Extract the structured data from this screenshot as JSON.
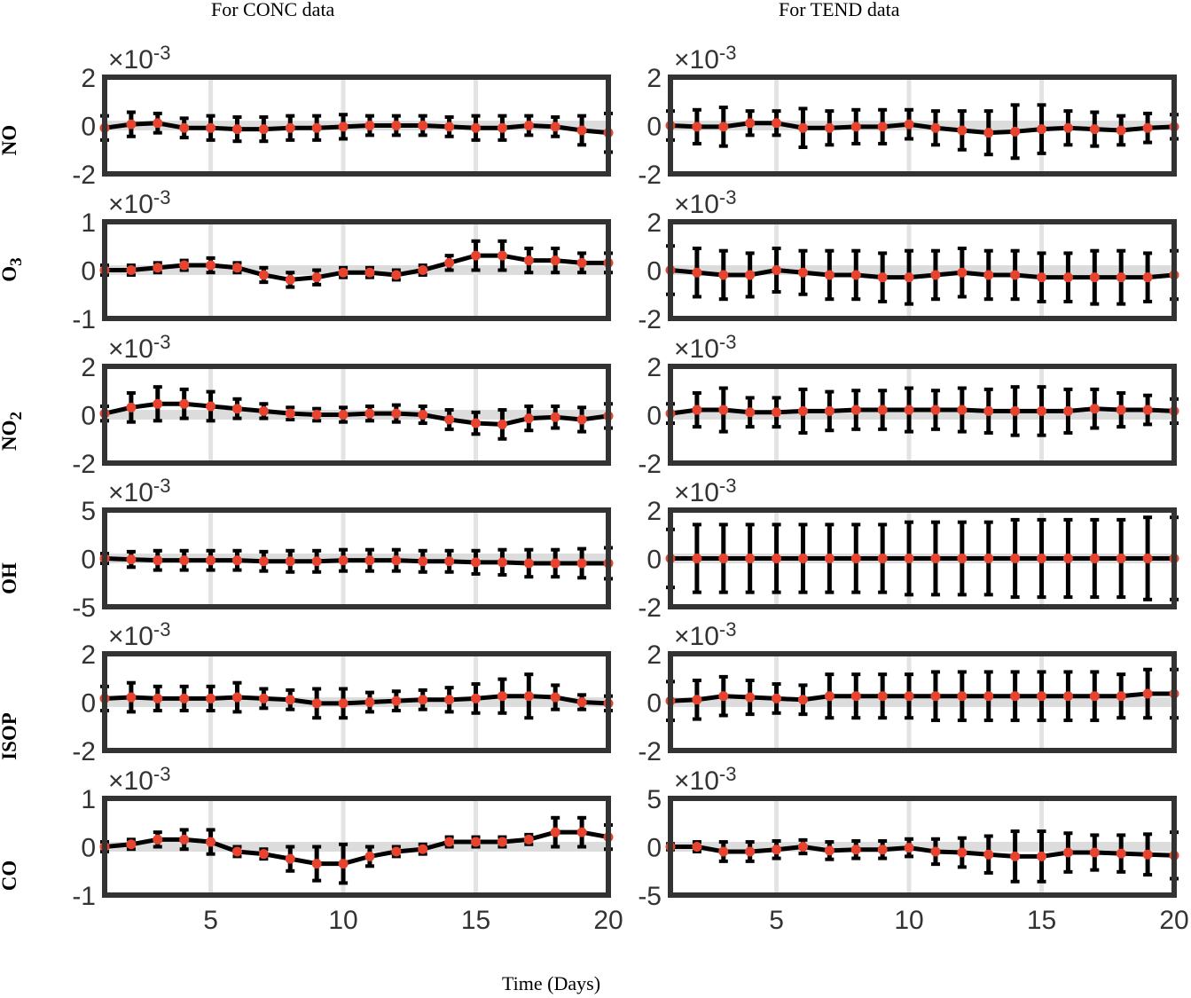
{
  "column_titles": [
    "For CONC data",
    "For TEND data"
  ],
  "x_title": "Time (Days)",
  "row_labels": [
    {
      "text": "NO",
      "sub": ""
    },
    {
      "text": "O",
      "sub": "3"
    },
    {
      "text": "NO",
      "sub": "2"
    },
    {
      "text": "OH",
      "sub": ""
    },
    {
      "text": "ISOP",
      "sub": ""
    },
    {
      "text": "CO",
      "sub": ""
    }
  ],
  "exponent_label": "×10",
  "exponent_power": "-3",
  "colors": {
    "mean": "#000000",
    "marker": "#e8432e",
    "grid": "#e3e3e3",
    "frame": "#333333",
    "band": "#dcdcdc"
  },
  "chart_data": [
    {
      "type": "line",
      "column": "For CONC data",
      "row": "NO",
      "x": [
        1,
        2,
        3,
        4,
        5,
        6,
        7,
        8,
        9,
        10,
        11,
        12,
        13,
        14,
        15,
        16,
        17,
        18,
        19,
        20
      ],
      "values": [
        -0.1,
        0.05,
        0.1,
        -0.1,
        -0.1,
        -0.15,
        -0.15,
        -0.1,
        -0.1,
        -0.05,
        0.0,
        0.0,
        0.0,
        -0.05,
        -0.1,
        -0.1,
        0.0,
        -0.05,
        -0.2,
        -0.3
      ],
      "error": [
        0.5,
        0.5,
        0.4,
        0.4,
        0.5,
        0.5,
        0.5,
        0.5,
        0.5,
        0.5,
        0.4,
        0.4,
        0.4,
        0.4,
        0.5,
        0.5,
        0.4,
        0.4,
        0.6,
        0.8
      ],
      "xlim": [
        1,
        20
      ],
      "ylim": [
        -2,
        2
      ],
      "yticks": [
        -2,
        0,
        2
      ],
      "multiplier": "×10^-3",
      "grid_x": [
        5,
        10,
        15
      ]
    },
    {
      "type": "line",
      "column": "For TEND data",
      "row": "NO",
      "x": [
        1,
        2,
        3,
        4,
        5,
        6,
        7,
        8,
        9,
        10,
        11,
        12,
        13,
        14,
        15,
        16,
        17,
        18,
        19,
        20
      ],
      "values": [
        0.0,
        -0.05,
        -0.05,
        0.1,
        0.1,
        -0.1,
        -0.1,
        -0.05,
        -0.05,
        0.05,
        -0.1,
        -0.2,
        -0.3,
        -0.25,
        -0.15,
        -0.1,
        -0.15,
        -0.2,
        -0.1,
        -0.05
      ],
      "error": [
        0.6,
        0.7,
        0.8,
        0.5,
        0.5,
        0.8,
        0.7,
        0.7,
        0.7,
        0.6,
        0.7,
        0.8,
        0.9,
        1.1,
        1.0,
        0.7,
        0.7,
        0.6,
        0.6,
        0.5
      ],
      "xlim": [
        1,
        20
      ],
      "ylim": [
        -2,
        2
      ],
      "yticks": [
        -2,
        0,
        2
      ],
      "multiplier": "×10^-3",
      "grid_x": [
        5,
        10,
        15
      ]
    },
    {
      "type": "line",
      "column": "For CONC data",
      "row": "O3",
      "x": [
        1,
        2,
        3,
        4,
        5,
        6,
        7,
        8,
        9,
        10,
        11,
        12,
        13,
        14,
        15,
        16,
        17,
        18,
        19,
        20
      ],
      "values": [
        0.0,
        0.0,
        0.05,
        0.1,
        0.1,
        0.05,
        -0.1,
        -0.2,
        -0.15,
        -0.05,
        -0.05,
        -0.1,
        0.0,
        0.15,
        0.3,
        0.3,
        0.2,
        0.2,
        0.15,
        0.15
      ],
      "error": [
        0.1,
        0.1,
        0.1,
        0.1,
        0.15,
        0.1,
        0.15,
        0.15,
        0.15,
        0.1,
        0.1,
        0.1,
        0.1,
        0.15,
        0.3,
        0.3,
        0.25,
        0.25,
        0.2,
        0.2
      ],
      "xlim": [
        1,
        20
      ],
      "ylim": [
        -1,
        1
      ],
      "yticks": [
        -1,
        0,
        1
      ],
      "multiplier": "×10^-3",
      "grid_x": [
        5,
        10,
        15
      ]
    },
    {
      "type": "line",
      "column": "For TEND data",
      "row": "O3",
      "x": [
        1,
        2,
        3,
        4,
        5,
        6,
        7,
        8,
        9,
        10,
        11,
        12,
        13,
        14,
        15,
        16,
        17,
        18,
        19,
        20
      ],
      "values": [
        0.0,
        -0.1,
        -0.2,
        -0.2,
        0.0,
        -0.1,
        -0.2,
        -0.2,
        -0.3,
        -0.3,
        -0.2,
        -0.1,
        -0.2,
        -0.2,
        -0.3,
        -0.3,
        -0.3,
        -0.3,
        -0.3,
        -0.2
      ],
      "error": [
        1.0,
        1.0,
        1.0,
        0.9,
        0.9,
        0.9,
        1.0,
        1.0,
        1.0,
        1.1,
        1.0,
        1.0,
        1.0,
        1.0,
        1.0,
        1.0,
        1.1,
        1.1,
        1.0,
        1.0
      ],
      "xlim": [
        1,
        20
      ],
      "ylim": [
        -2,
        2
      ],
      "yticks": [
        -2,
        0,
        2
      ],
      "multiplier": "×10^-3",
      "grid_x": [
        5,
        10,
        15
      ]
    },
    {
      "type": "line",
      "column": "For CONC data",
      "row": "NO2",
      "x": [
        1,
        2,
        3,
        4,
        5,
        6,
        7,
        8,
        9,
        10,
        11,
        12,
        13,
        14,
        15,
        16,
        17,
        18,
        19,
        20
      ],
      "values": [
        0.05,
        0.3,
        0.45,
        0.45,
        0.35,
        0.25,
        0.15,
        0.05,
        0.0,
        0.0,
        0.05,
        0.05,
        0.0,
        -0.2,
        -0.35,
        -0.4,
        -0.15,
        -0.1,
        -0.2,
        -0.05
      ],
      "error": [
        0.3,
        0.6,
        0.7,
        0.6,
        0.6,
        0.4,
        0.3,
        0.25,
        0.25,
        0.3,
        0.3,
        0.35,
        0.35,
        0.4,
        0.45,
        0.6,
        0.5,
        0.45,
        0.5,
        0.5
      ],
      "xlim": [
        1,
        20
      ],
      "ylim": [
        -2,
        2
      ],
      "yticks": [
        -2,
        0,
        2
      ],
      "multiplier": "×10^-3",
      "grid_x": [
        5,
        10,
        15
      ]
    },
    {
      "type": "line",
      "column": "For TEND data",
      "row": "NO2",
      "x": [
        1,
        2,
        3,
        4,
        5,
        6,
        7,
        8,
        9,
        10,
        11,
        12,
        13,
        14,
        15,
        16,
        17,
        18,
        19,
        20
      ],
      "values": [
        0.05,
        0.2,
        0.2,
        0.1,
        0.1,
        0.15,
        0.15,
        0.2,
        0.2,
        0.2,
        0.2,
        0.2,
        0.15,
        0.15,
        0.15,
        0.15,
        0.25,
        0.2,
        0.2,
        0.15
      ],
      "error": [
        0.4,
        0.7,
        0.9,
        0.6,
        0.6,
        0.9,
        0.8,
        0.8,
        0.8,
        0.9,
        0.8,
        0.9,
        0.9,
        1.0,
        1.0,
        0.9,
        0.8,
        0.7,
        0.6,
        0.5
      ],
      "xlim": [
        1,
        20
      ],
      "ylim": [
        -2,
        2
      ],
      "yticks": [
        -2,
        0,
        2
      ],
      "multiplier": "×10^-3",
      "grid_x": [
        5,
        10,
        15
      ]
    },
    {
      "type": "line",
      "column": "For CONC data",
      "row": "OH",
      "x": [
        1,
        2,
        3,
        4,
        5,
        6,
        7,
        8,
        9,
        10,
        11,
        12,
        13,
        14,
        15,
        16,
        17,
        18,
        19,
        20
      ],
      "values": [
        0.0,
        -0.1,
        -0.2,
        -0.2,
        -0.2,
        -0.2,
        -0.3,
        -0.3,
        -0.3,
        -0.2,
        -0.2,
        -0.2,
        -0.3,
        -0.3,
        -0.4,
        -0.4,
        -0.5,
        -0.5,
        -0.5,
        -0.5
      ],
      "error": [
        0.5,
        0.8,
        1.0,
        1.0,
        1.0,
        1.0,
        1.0,
        1.1,
        1.1,
        1.1,
        1.1,
        1.1,
        1.1,
        1.1,
        1.2,
        1.3,
        1.4,
        1.4,
        1.5,
        1.6
      ],
      "xlim": [
        1,
        20
      ],
      "ylim": [
        -5,
        5
      ],
      "yticks": [
        -5,
        0,
        5
      ],
      "multiplier": "×10^-3",
      "grid_x": [
        5,
        10,
        15
      ]
    },
    {
      "type": "line",
      "column": "For TEND data",
      "row": "OH",
      "x": [
        1,
        2,
        3,
        4,
        5,
        6,
        7,
        8,
        9,
        10,
        11,
        12,
        13,
        14,
        15,
        16,
        17,
        18,
        19,
        20
      ],
      "values": [
        0,
        0,
        0,
        0,
        0,
        0,
        0,
        0,
        0,
        0,
        0,
        0,
        0,
        0,
        0,
        0,
        0,
        0,
        0,
        0
      ],
      "error": [
        1.2,
        1.4,
        1.4,
        1.4,
        1.4,
        1.4,
        1.4,
        1.4,
        1.4,
        1.5,
        1.5,
        1.5,
        1.5,
        1.6,
        1.6,
        1.6,
        1.6,
        1.6,
        1.7,
        1.7
      ],
      "xlim": [
        1,
        20
      ],
      "ylim": [
        -2,
        2
      ],
      "yticks": [
        -2,
        0,
        2
      ],
      "multiplier": "×10^-3",
      "grid_x": [
        5,
        10,
        15
      ]
    },
    {
      "type": "line",
      "column": "For CONC data",
      "row": "ISOP",
      "x": [
        1,
        2,
        3,
        4,
        5,
        6,
        7,
        8,
        9,
        10,
        11,
        12,
        13,
        14,
        15,
        16,
        17,
        18,
        19,
        20
      ],
      "values": [
        0.15,
        0.2,
        0.15,
        0.15,
        0.15,
        0.2,
        0.15,
        0.1,
        -0.05,
        -0.05,
        0.0,
        0.05,
        0.1,
        0.1,
        0.15,
        0.25,
        0.25,
        0.2,
        0.0,
        -0.05
      ],
      "error": [
        0.5,
        0.6,
        0.5,
        0.5,
        0.5,
        0.6,
        0.4,
        0.4,
        0.6,
        0.6,
        0.4,
        0.4,
        0.4,
        0.5,
        0.6,
        0.7,
        0.9,
        0.5,
        0.3,
        0.3
      ],
      "xlim": [
        1,
        20
      ],
      "ylim": [
        -2,
        2
      ],
      "yticks": [
        -2,
        0,
        2
      ],
      "multiplier": "×10^-3",
      "grid_x": [
        5,
        10,
        15
      ]
    },
    {
      "type": "line",
      "column": "For TEND data",
      "row": "ISOP",
      "x": [
        1,
        2,
        3,
        4,
        5,
        6,
        7,
        8,
        9,
        10,
        11,
        12,
        13,
        14,
        15,
        16,
        17,
        18,
        19,
        20
      ],
      "values": [
        0.05,
        0.1,
        0.25,
        0.2,
        0.15,
        0.1,
        0.25,
        0.25,
        0.25,
        0.25,
        0.25,
        0.25,
        0.25,
        0.25,
        0.25,
        0.25,
        0.25,
        0.25,
        0.35,
        0.35
      ],
      "error": [
        0.8,
        0.8,
        0.8,
        0.7,
        0.6,
        0.6,
        0.9,
        0.9,
        0.9,
        0.9,
        1.0,
        1.0,
        1.0,
        1.0,
        1.0,
        1.0,
        1.0,
        0.9,
        1.0,
        1.0
      ],
      "xlim": [
        1,
        20
      ],
      "ylim": [
        -2,
        2
      ],
      "yticks": [
        -2,
        0,
        2
      ],
      "multiplier": "×10^-3",
      "grid_x": [
        5,
        10,
        15
      ]
    },
    {
      "type": "line",
      "column": "For CONC data",
      "row": "CO",
      "x": [
        1,
        2,
        3,
        4,
        5,
        6,
        7,
        8,
        9,
        10,
        11,
        12,
        13,
        14,
        15,
        16,
        17,
        18,
        19,
        20
      ],
      "values": [
        0.0,
        0.05,
        0.15,
        0.15,
        0.1,
        -0.1,
        -0.15,
        -0.25,
        -0.35,
        -0.35,
        -0.2,
        -0.1,
        -0.05,
        0.1,
        0.1,
        0.1,
        0.15,
        0.3,
        0.3,
        0.2
      ],
      "error": [
        0.1,
        0.1,
        0.15,
        0.2,
        0.25,
        0.1,
        0.1,
        0.25,
        0.35,
        0.4,
        0.2,
        0.1,
        0.1,
        0.1,
        0.1,
        0.1,
        0.1,
        0.3,
        0.3,
        0.25
      ],
      "xlim": [
        1,
        20
      ],
      "ylim": [
        -1,
        1
      ],
      "yticks": [
        -1,
        0,
        1
      ],
      "multiplier": "×10^-3",
      "grid_x": [
        5,
        10,
        15
      ]
    },
    {
      "type": "line",
      "column": "For TEND data",
      "row": "CO",
      "x": [
        1,
        2,
        3,
        4,
        5,
        6,
        7,
        8,
        9,
        10,
        11,
        12,
        13,
        14,
        15,
        16,
        17,
        18,
        19,
        20
      ],
      "values": [
        0.0,
        0.0,
        -0.5,
        -0.5,
        -0.3,
        0.0,
        -0.4,
        -0.3,
        -0.3,
        -0.1,
        -0.5,
        -0.6,
        -0.8,
        -1.0,
        -1.0,
        -0.6,
        -0.6,
        -0.7,
        -0.8,
        -0.9
      ],
      "error": [
        0.3,
        0.5,
        1.0,
        1.0,
        0.9,
        0.7,
        0.9,
        0.9,
        0.9,
        0.9,
        1.3,
        1.5,
        1.9,
        2.6,
        2.6,
        2.0,
        1.8,
        1.9,
        2.1,
        2.4
      ],
      "xlim": [
        1,
        20
      ],
      "ylim": [
        -5,
        5
      ],
      "yticks": [
        -5,
        0,
        5
      ],
      "multiplier": "×10^-3",
      "grid_x": [
        5,
        10,
        15
      ]
    }
  ],
  "x_ticks": [
    5,
    10,
    15,
    20
  ]
}
